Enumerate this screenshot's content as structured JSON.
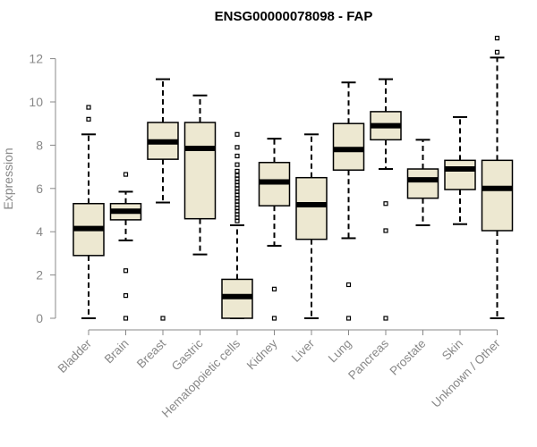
{
  "chart_data": {
    "type": "boxplot",
    "title": "ENSG00000078098 - FAP",
    "xlabel": "",
    "ylabel": "Expression",
    "ylim": [
      0,
      13
    ],
    "yticks": [
      0,
      2,
      4,
      6,
      8,
      10,
      12
    ],
    "grid": false,
    "colors": {
      "box_fill": "#ede8d1",
      "box_stroke": "#000000",
      "axis": "#888888",
      "title": "#000000"
    },
    "categories": [
      "Bladder",
      "Brain",
      "Breast",
      "Gastric",
      "Hematopoietic cells",
      "Kidney",
      "Liver",
      "Lung",
      "Pancreas",
      "Prostate",
      "Skin",
      "Unknown / Other"
    ],
    "boxes": [
      {
        "name": "Bladder",
        "whisker_low": 0.0,
        "q1": 2.9,
        "median": 4.15,
        "q3": 5.3,
        "whisker_high": 8.5,
        "outliers": [
          9.2,
          9.75
        ]
      },
      {
        "name": "Brain",
        "whisker_low": 3.6,
        "q1": 4.55,
        "median": 4.95,
        "q3": 5.3,
        "whisker_high": 5.85,
        "outliers": [
          0.0,
          1.05,
          2.2,
          6.65
        ]
      },
      {
        "name": "Breast",
        "whisker_low": 5.35,
        "q1": 7.35,
        "median": 8.15,
        "q3": 9.05,
        "whisker_high": 11.05,
        "outliers": [
          0.0
        ]
      },
      {
        "name": "Gastric",
        "whisker_low": 2.95,
        "q1": 4.6,
        "median": 7.85,
        "q3": 9.05,
        "whisker_high": 10.3,
        "outliers": []
      },
      {
        "name": "Hematopoietic cells",
        "whisker_low": 0.0,
        "q1": 0.0,
        "median": 1.0,
        "q3": 1.8,
        "whisker_high": 4.3,
        "outliers": [
          4.5,
          4.65,
          4.8,
          4.95,
          5.1,
          5.25,
          5.4,
          5.55,
          5.7,
          5.85,
          6.0,
          6.15,
          6.3,
          6.45,
          6.6,
          6.8,
          7.1,
          7.5,
          7.9,
          8.5
        ]
      },
      {
        "name": "Kidney",
        "whisker_low": 3.35,
        "q1": 5.2,
        "median": 6.3,
        "q3": 7.2,
        "whisker_high": 8.3,
        "outliers": [
          0.0,
          1.35
        ]
      },
      {
        "name": "Liver",
        "whisker_low": 0.0,
        "q1": 3.65,
        "median": 5.25,
        "q3": 6.5,
        "whisker_high": 8.5,
        "outliers": []
      },
      {
        "name": "Lung",
        "whisker_low": 3.7,
        "q1": 6.85,
        "median": 7.8,
        "q3": 9.0,
        "whisker_high": 10.9,
        "outliers": [
          0.0,
          1.55
        ]
      },
      {
        "name": "Pancreas",
        "whisker_low": 6.9,
        "q1": 8.25,
        "median": 8.9,
        "q3": 9.55,
        "whisker_high": 11.05,
        "outliers": [
          0.0,
          4.05,
          5.3
        ]
      },
      {
        "name": "Prostate",
        "whisker_low": 4.3,
        "q1": 5.55,
        "median": 6.4,
        "q3": 6.9,
        "whisker_high": 8.25,
        "outliers": []
      },
      {
        "name": "Skin",
        "whisker_low": 4.35,
        "q1": 5.95,
        "median": 6.9,
        "q3": 7.3,
        "whisker_high": 9.3,
        "outliers": []
      },
      {
        "name": "Unknown / Other",
        "whisker_low": 0.0,
        "q1": 4.05,
        "median": 6.0,
        "q3": 7.3,
        "whisker_high": 12.05,
        "outliers": [
          12.3,
          12.95
        ]
      }
    ]
  }
}
